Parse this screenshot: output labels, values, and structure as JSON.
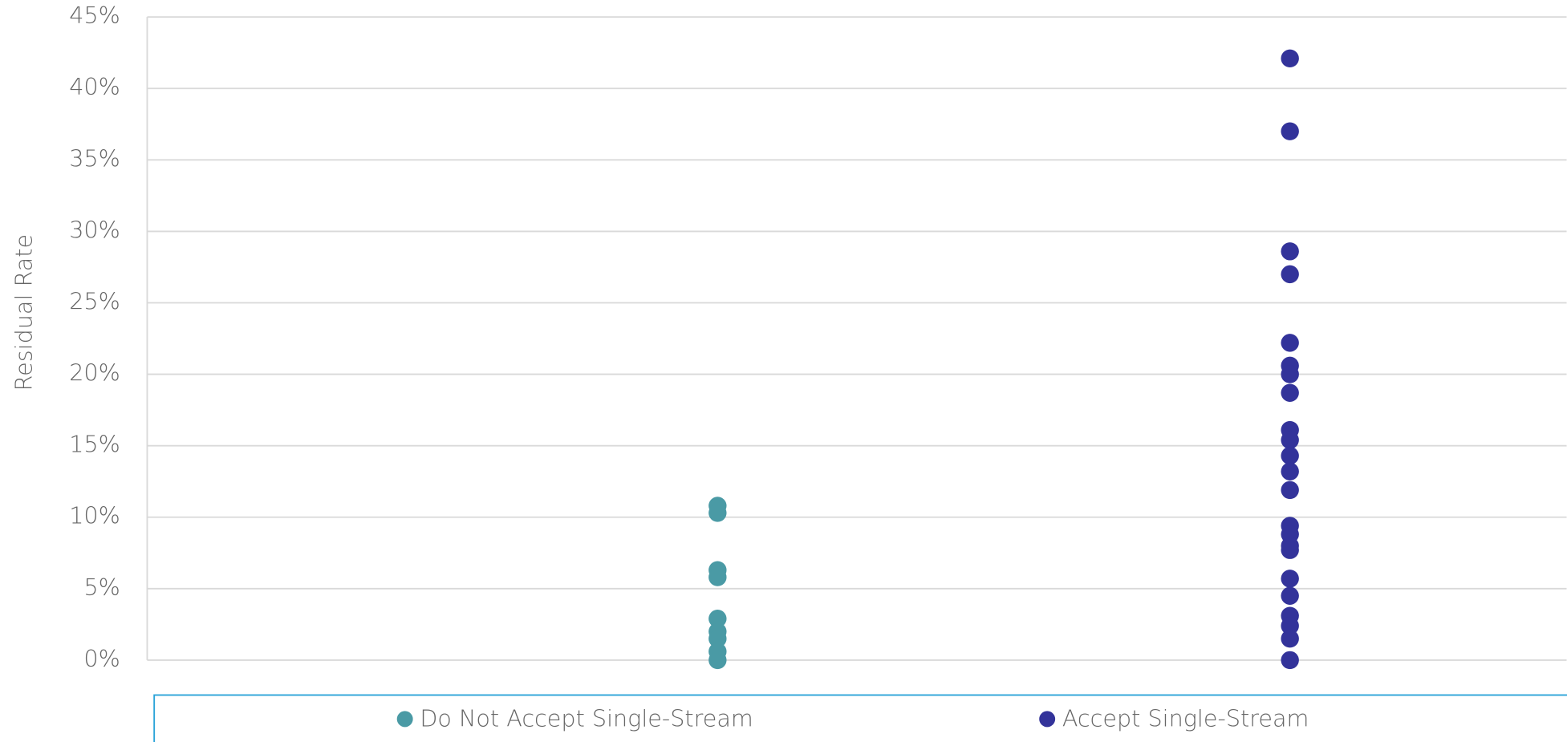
{
  "chart_data": {
    "type": "scatter",
    "y_label": "Residual Rate",
    "ylim": [
      0,
      45
    ],
    "yticks": [
      {
        "value": 0,
        "label": "0%"
      },
      {
        "value": 5,
        "label": "5%"
      },
      {
        "value": 10,
        "label": "10%"
      },
      {
        "value": 15,
        "label": "15%"
      },
      {
        "value": 20,
        "label": "20%"
      },
      {
        "value": 25,
        "label": "25%"
      },
      {
        "value": 30,
        "label": "30%"
      },
      {
        "value": 35,
        "label": "35%"
      },
      {
        "value": 40,
        "label": "40%"
      },
      {
        "value": 45,
        "label": "45%"
      }
    ],
    "grid": true,
    "legend": "bottom",
    "series": [
      {
        "name": "Do Not Accept Single-Stream",
        "color": "#4a9aa5",
        "values": [
          10.8,
          10.3,
          6.3,
          5.8,
          2.9,
          2.0,
          1.5,
          0.6,
          0
        ]
      },
      {
        "name": "Accept Single-Stream",
        "color": "#33339a",
        "values": [
          42.1,
          37.0,
          28.6,
          27.0,
          22.2,
          20.6,
          20.0,
          18.7,
          16.1,
          15.4,
          14.3,
          13.2,
          11.9,
          9.4,
          8.8,
          8.0,
          7.7,
          5.7,
          4.5,
          3.1,
          2.4,
          1.5,
          0
        ]
      }
    ]
  }
}
